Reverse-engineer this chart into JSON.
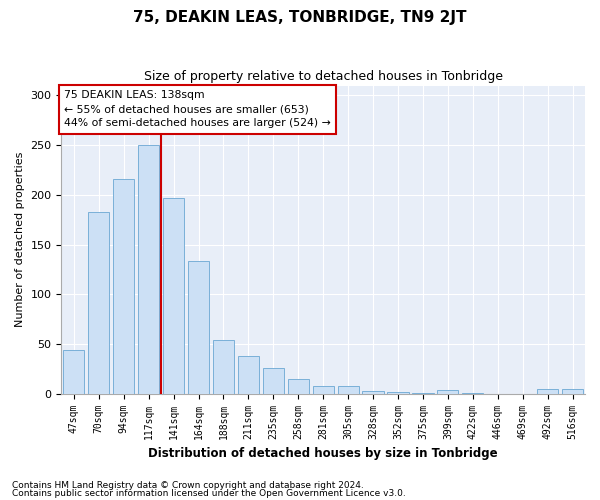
{
  "title": "75, DEAKIN LEAS, TONBRIDGE, TN9 2JT",
  "subtitle": "Size of property relative to detached houses in Tonbridge",
  "xlabel": "Distribution of detached houses by size in Tonbridge",
  "ylabel": "Number of detached properties",
  "categories": [
    "47sqm",
    "70sqm",
    "94sqm",
    "117sqm",
    "141sqm",
    "164sqm",
    "188sqm",
    "211sqm",
    "235sqm",
    "258sqm",
    "281sqm",
    "305sqm",
    "328sqm",
    "352sqm",
    "375sqm",
    "399sqm",
    "422sqm",
    "446sqm",
    "469sqm",
    "492sqm",
    "516sqm"
  ],
  "values": [
    44,
    183,
    216,
    250,
    197,
    133,
    54,
    38,
    26,
    15,
    8,
    8,
    3,
    2,
    1,
    4,
    1,
    0,
    0,
    5,
    5
  ],
  "bar_color": "#cce0f5",
  "bar_edge_color": "#7ab0d8",
  "vline_color": "#cc0000",
  "annotation_box_edge_color": "#cc0000",
  "marker_label": "75 DEAKIN LEAS: 138sqm",
  "annotation_line1": "← 55% of detached houses are smaller (653)",
  "annotation_line2": "44% of semi-detached houses are larger (524) →",
  "vline_x_index": 4,
  "ylim": [
    0,
    310
  ],
  "yticks": [
    0,
    50,
    100,
    150,
    200,
    250,
    300
  ],
  "footer1": "Contains HM Land Registry data © Crown copyright and database right 2024.",
  "footer2": "Contains public sector information licensed under the Open Government Licence v3.0.",
  "bg_color": "#ffffff",
  "plot_bg_color": "#e8eef8",
  "grid_color": "#ffffff"
}
